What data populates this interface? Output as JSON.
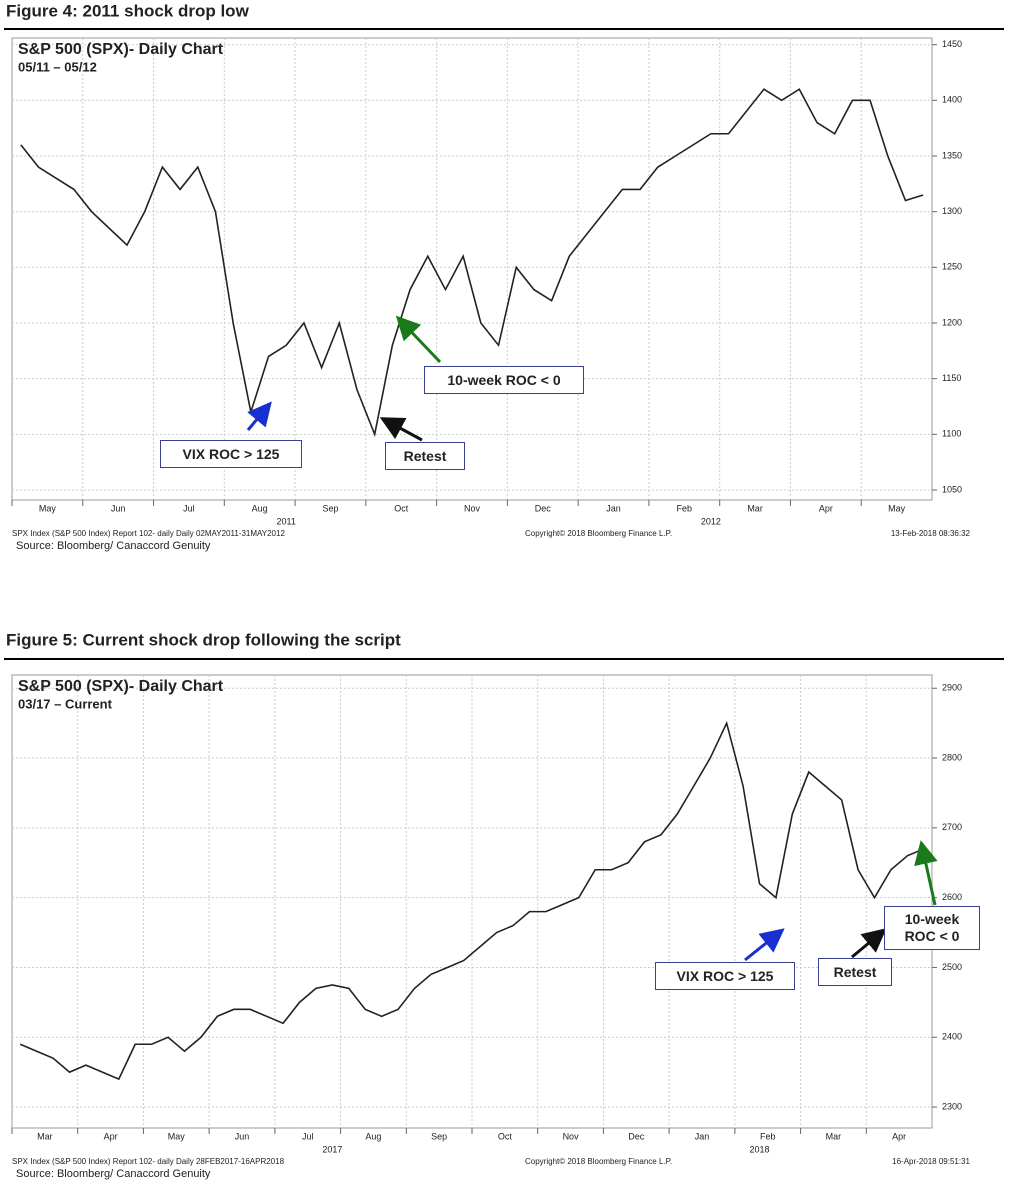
{
  "chart_data": [
    {
      "type": "line",
      "figure_title": "Figure 4: 2011 shock drop low",
      "title": "S&P 500 (SPX)- Daily Chart",
      "subtitle": "05/11 – 05/12",
      "categories": [
        "May",
        null,
        null,
        null,
        "Jun",
        null,
        null,
        null,
        "Jul",
        null,
        null,
        null,
        "Aug",
        null,
        null,
        null,
        "Sep",
        null,
        null,
        null,
        "Oct",
        null,
        null,
        null,
        "Nov",
        null,
        null,
        null,
        "Dec",
        null,
        null,
        null,
        "Jan",
        null,
        null,
        null,
        "Feb",
        null,
        null,
        null,
        "Mar",
        null,
        null,
        null,
        "Apr",
        null,
        null,
        null,
        "May",
        null,
        null,
        null
      ],
      "years": [
        null,
        null,
        null,
        null,
        null,
        null,
        null,
        null,
        null,
        null,
        null,
        null,
        null,
        null,
        null,
        "2011",
        null,
        null,
        null,
        null,
        null,
        null,
        null,
        null,
        null,
        null,
        null,
        null,
        null,
        null,
        null,
        null,
        null,
        null,
        null,
        null,
        null,
        null,
        null,
        "2012",
        null,
        null,
        null,
        null,
        null,
        null,
        null,
        null,
        null,
        null,
        null,
        null
      ],
      "values": [
        1360,
        1340,
        1330,
        1320,
        1300,
        1285,
        1270,
        1300,
        1340,
        1320,
        1340,
        1300,
        1200,
        1120,
        1170,
        1180,
        1200,
        1160,
        1200,
        1140,
        1100,
        1180,
        1230,
        1260,
        1230,
        1260,
        1200,
        1180,
        1250,
        1230,
        1220,
        1260,
        1280,
        1300,
        1320,
        1320,
        1340,
        1350,
        1360,
        1370,
        1370,
        1390,
        1410,
        1400,
        1410,
        1380,
        1370,
        1400,
        1400,
        1350,
        1310,
        1315
      ],
      "color": "#222222",
      "ylim": [
        1041,
        1456
      ],
      "yticks": [
        1050,
        1100,
        1150,
        1200,
        1250,
        1300,
        1350,
        1400,
        1450
      ],
      "grid": true,
      "annotations": [
        "VIX ROC > 125",
        "Retest",
        "10-week ROC < 0"
      ],
      "footer_left": "SPX Index (S&P 500 Index) Report 102- daily  Daily 02MAY2011-31MAY2012",
      "footer_center": "Copyright© 2018 Bloomberg Finance L.P.",
      "footer_right": "13-Feb-2018 08:36:32",
      "source": "Source: Bloomberg/ Canaccord Genuity"
    },
    {
      "type": "line",
      "figure_title": "Figure 5: Current shock drop following the script",
      "title": "S&P 500 (SPX)- Daily Chart",
      "subtitle": "03/17 – Current",
      "categories": [
        "Mar",
        null,
        null,
        null,
        "Apr",
        null,
        null,
        null,
        "May",
        null,
        null,
        null,
        "Jun",
        null,
        null,
        null,
        "Jul",
        null,
        null,
        null,
        "Aug",
        null,
        null,
        null,
        "Sep",
        null,
        null,
        null,
        "Oct",
        null,
        null,
        null,
        "Nov",
        null,
        null,
        null,
        "Dec",
        null,
        null,
        null,
        "Jan",
        null,
        null,
        null,
        "Feb",
        null,
        null,
        null,
        "Mar",
        null,
        null,
        null,
        "Apr",
        null,
        null,
        null
      ],
      "years": [
        null,
        null,
        null,
        null,
        null,
        null,
        null,
        null,
        null,
        null,
        null,
        null,
        null,
        null,
        null,
        null,
        null,
        null,
        null,
        "2017",
        null,
        null,
        null,
        null,
        null,
        null,
        null,
        null,
        null,
        null,
        null,
        null,
        null,
        null,
        null,
        null,
        null,
        null,
        null,
        null,
        null,
        null,
        null,
        null,
        null,
        "2018",
        null,
        null,
        null,
        null,
        null,
        null,
        null,
        null,
        null,
        null
      ],
      "values": [
        2390,
        2380,
        2370,
        2350,
        2360,
        2350,
        2340,
        2390,
        2390,
        2400,
        2380,
        2400,
        2430,
        2440,
        2440,
        2430,
        2420,
        2450,
        2470,
        2475,
        2470,
        2440,
        2430,
        2440,
        2470,
        2490,
        2500,
        2510,
        2530,
        2550,
        2560,
        2580,
        2580,
        2590,
        2600,
        2640,
        2640,
        2650,
        2680,
        2690,
        2720,
        2760,
        2800,
        2850,
        2760,
        2620,
        2600,
        2720,
        2780,
        2760,
        2740,
        2640,
        2600,
        2640,
        2660,
        2670
      ],
      "color": "#222222",
      "ylim": [
        2270,
        2919
      ],
      "yticks": [
        2300,
        2400,
        2500,
        2600,
        2700,
        2800,
        2900
      ],
      "grid": true,
      "annotations": [
        "VIX ROC > 125",
        "Retest",
        "10-week ROC < 0"
      ],
      "footer_left": "SPX Index (S&P 500 Index) Report 102- daily  Daily 28FEB2017-16APR2018",
      "footer_center": "Copyright© 2018 Bloomberg Finance L.P.",
      "footer_right": "16-Apr-2018 09:51:31",
      "source": "Source: Bloomberg/ Canaccord Genuity"
    }
  ]
}
